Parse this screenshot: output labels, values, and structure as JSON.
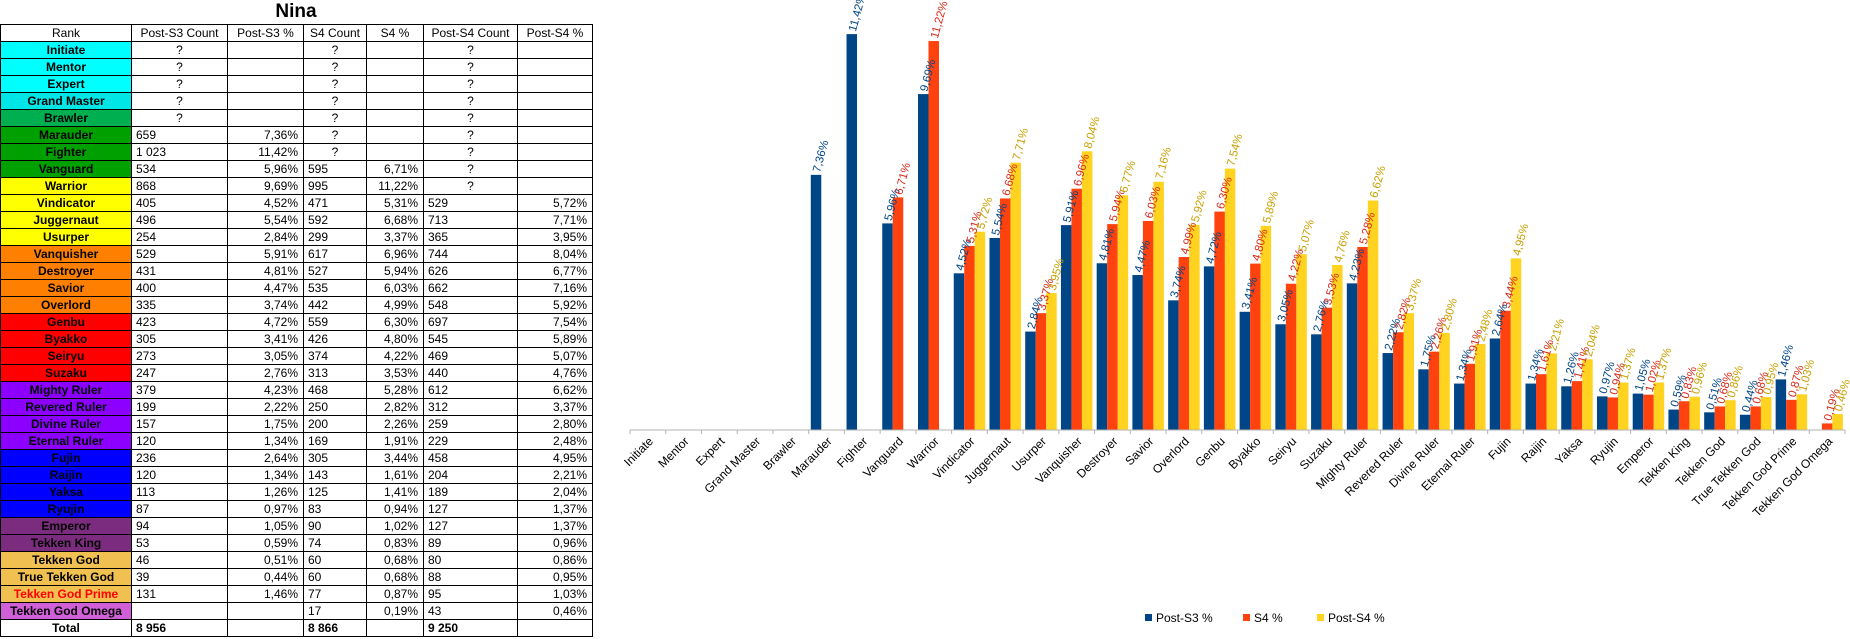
{
  "table": {
    "title": "Nina",
    "columns": [
      "Rank",
      "Post-S3 Count",
      "Post-S3 %",
      "S4 Count",
      "S4 %",
      "Post-S4 Count",
      "Post-S4 %"
    ],
    "rows": [
      {
        "rank": "Initiate",
        "color": "#00ffff",
        "post_s3_count": "?",
        "post_s3_pct": "",
        "s4_count": "?",
        "s4_pct": "",
        "post_s4_count": "?",
        "post_s4_pct": ""
      },
      {
        "rank": "Mentor",
        "color": "#00ffff",
        "post_s3_count": "?",
        "post_s3_pct": "",
        "s4_count": "?",
        "s4_pct": "",
        "post_s4_count": "?",
        "post_s4_pct": ""
      },
      {
        "rank": "Expert",
        "color": "#00ffff",
        "post_s3_count": "?",
        "post_s3_pct": "",
        "s4_count": "?",
        "s4_pct": "",
        "post_s4_count": "?",
        "post_s4_pct": ""
      },
      {
        "rank": "Grand Master",
        "color": "#00e5e5",
        "post_s3_count": "?",
        "post_s3_pct": "",
        "s4_count": "?",
        "s4_pct": "",
        "post_s4_count": "?",
        "post_s4_pct": ""
      },
      {
        "rank": "Brawler",
        "color": "#00b050",
        "post_s3_count": "?",
        "post_s3_pct": "",
        "s4_count": "?",
        "s4_pct": "",
        "post_s4_count": "?",
        "post_s4_pct": ""
      },
      {
        "rank": "Marauder",
        "color": "#00a000",
        "post_s3_count": "659",
        "post_s3_pct": "7,36%",
        "s4_count": "?",
        "s4_pct": "",
        "post_s4_count": "?",
        "post_s4_pct": ""
      },
      {
        "rank": "Fighter",
        "color": "#00a000",
        "post_s3_count": "1 023",
        "post_s3_pct": "11,42%",
        "s4_count": "?",
        "s4_pct": "",
        "post_s4_count": "?",
        "post_s4_pct": ""
      },
      {
        "rank": "Vanguard",
        "color": "#00a000",
        "post_s3_count": "534",
        "post_s3_pct": "5,96%",
        "s4_count": "595",
        "s4_pct": "6,71%",
        "post_s4_count": "?",
        "post_s4_pct": ""
      },
      {
        "rank": "Warrior",
        "color": "#ffff00",
        "post_s3_count": "868",
        "post_s3_pct": "9,69%",
        "s4_count": "995",
        "s4_pct": "11,22%",
        "post_s4_count": "?",
        "post_s4_pct": ""
      },
      {
        "rank": "Vindicator",
        "color": "#ffff00",
        "post_s3_count": "405",
        "post_s3_pct": "4,52%",
        "s4_count": "471",
        "s4_pct": "5,31%",
        "post_s4_count": "529",
        "post_s4_pct": "5,72%"
      },
      {
        "rank": "Juggernaut",
        "color": "#ffff00",
        "post_s3_count": "496",
        "post_s3_pct": "5,54%",
        "s4_count": "592",
        "s4_pct": "6,68%",
        "post_s4_count": "713",
        "post_s4_pct": "7,71%"
      },
      {
        "rank": "Usurper",
        "color": "#ffff00",
        "post_s3_count": "254",
        "post_s3_pct": "2,84%",
        "s4_count": "299",
        "s4_pct": "3,37%",
        "post_s4_count": "365",
        "post_s4_pct": "3,95%"
      },
      {
        "rank": "Vanquisher",
        "color": "#ff8000",
        "post_s3_count": "529",
        "post_s3_pct": "5,91%",
        "s4_count": "617",
        "s4_pct": "6,96%",
        "post_s4_count": "744",
        "post_s4_pct": "8,04%"
      },
      {
        "rank": "Destroyer",
        "color": "#ff8000",
        "post_s3_count": "431",
        "post_s3_pct": "4,81%",
        "s4_count": "527",
        "s4_pct": "5,94%",
        "post_s4_count": "626",
        "post_s4_pct": "6,77%"
      },
      {
        "rank": "Savior",
        "color": "#ff8000",
        "post_s3_count": "400",
        "post_s3_pct": "4,47%",
        "s4_count": "535",
        "s4_pct": "6,03%",
        "post_s4_count": "662",
        "post_s4_pct": "7,16%"
      },
      {
        "rank": "Overlord",
        "color": "#ff8000",
        "post_s3_count": "335",
        "post_s3_pct": "3,74%",
        "s4_count": "442",
        "s4_pct": "4,99%",
        "post_s4_count": "548",
        "post_s4_pct": "5,92%"
      },
      {
        "rank": "Genbu",
        "color": "#ff0000",
        "post_s3_count": "423",
        "post_s3_pct": "4,72%",
        "s4_count": "559",
        "s4_pct": "6,30%",
        "post_s4_count": "697",
        "post_s4_pct": "7,54%"
      },
      {
        "rank": "Byakko",
        "color": "#ff0000",
        "post_s3_count": "305",
        "post_s3_pct": "3,41%",
        "s4_count": "426",
        "s4_pct": "4,80%",
        "post_s4_count": "545",
        "post_s4_pct": "5,89%"
      },
      {
        "rank": "Seiryu",
        "color": "#ff0000",
        "post_s3_count": "273",
        "post_s3_pct": "3,05%",
        "s4_count": "374",
        "s4_pct": "4,22%",
        "post_s4_count": "469",
        "post_s4_pct": "5,07%"
      },
      {
        "rank": "Suzaku",
        "color": "#ff0000",
        "post_s3_count": "247",
        "post_s3_pct": "2,76%",
        "s4_count": "313",
        "s4_pct": "3,53%",
        "post_s4_count": "440",
        "post_s4_pct": "4,76%"
      },
      {
        "rank": "Mighty Ruler",
        "color": "#8b00ff",
        "post_s3_count": "379",
        "post_s3_pct": "4,23%",
        "s4_count": "468",
        "s4_pct": "5,28%",
        "post_s4_count": "612",
        "post_s4_pct": "6,62%"
      },
      {
        "rank": "Revered Ruler",
        "color": "#8b00ff",
        "post_s3_count": "199",
        "post_s3_pct": "2,22%",
        "s4_count": "250",
        "s4_pct": "2,82%",
        "post_s4_count": "312",
        "post_s4_pct": "3,37%"
      },
      {
        "rank": "Divine Ruler",
        "color": "#8b00ff",
        "post_s3_count": "157",
        "post_s3_pct": "1,75%",
        "s4_count": "200",
        "s4_pct": "2,26%",
        "post_s4_count": "259",
        "post_s4_pct": "2,80%"
      },
      {
        "rank": "Eternal Ruler",
        "color": "#8b00ff",
        "post_s3_count": "120",
        "post_s3_pct": "1,34%",
        "s4_count": "169",
        "s4_pct": "1,91%",
        "post_s4_count": "229",
        "post_s4_pct": "2,48%"
      },
      {
        "rank": "Fujin",
        "color": "#0000ff",
        "post_s3_count": "236",
        "post_s3_pct": "2,64%",
        "s4_count": "305",
        "s4_pct": "3,44%",
        "post_s4_count": "458",
        "post_s4_pct": "4,95%"
      },
      {
        "rank": "Raijin",
        "color": "#0000ff",
        "post_s3_count": "120",
        "post_s3_pct": "1,34%",
        "s4_count": "143",
        "s4_pct": "1,61%",
        "post_s4_count": "204",
        "post_s4_pct": "2,21%"
      },
      {
        "rank": "Yaksa",
        "color": "#0000ff",
        "post_s3_count": "113",
        "post_s3_pct": "1,26%",
        "s4_count": "125",
        "s4_pct": "1,41%",
        "post_s4_count": "189",
        "post_s4_pct": "2,04%"
      },
      {
        "rank": "Ryujin",
        "color": "#0000ff",
        "post_s3_count": "87",
        "post_s3_pct": "0,97%",
        "s4_count": "83",
        "s4_pct": "0,94%",
        "post_s4_count": "127",
        "post_s4_pct": "1,37%"
      },
      {
        "rank": "Emperor",
        "color": "#7b2c7e",
        "post_s3_count": "94",
        "post_s3_pct": "1,05%",
        "s4_count": "90",
        "s4_pct": "1,02%",
        "post_s4_count": "127",
        "post_s4_pct": "1,37%"
      },
      {
        "rank": "Tekken King",
        "color": "#7b2c7e",
        "post_s3_count": "53",
        "post_s3_pct": "0,59%",
        "s4_count": "74",
        "s4_pct": "0,83%",
        "post_s4_count": "89",
        "post_s4_pct": "0,96%"
      },
      {
        "rank": "Tekken God",
        "color": "#f0c050",
        "post_s3_count": "46",
        "post_s3_pct": "0,51%",
        "s4_count": "60",
        "s4_pct": "0,68%",
        "post_s4_count": "80",
        "post_s4_pct": "0,86%"
      },
      {
        "rank": "True Tekken God",
        "color": "#f0c050",
        "post_s3_count": "39",
        "post_s3_pct": "0,44%",
        "s4_count": "60",
        "s4_pct": "0,68%",
        "post_s4_count": "88",
        "post_s4_pct": "0,95%"
      },
      {
        "rank": "Tekken God Prime",
        "color": "#f0c050",
        "text_color": "#ff0000",
        "post_s3_count": "131",
        "post_s3_pct": "1,46%",
        "s4_count": "77",
        "s4_pct": "0,87%",
        "post_s4_count": "95",
        "post_s4_pct": "1,03%"
      },
      {
        "rank": "Tekken God Omega",
        "color": "#d15fd8",
        "post_s3_count": "",
        "post_s3_pct": "",
        "s4_count": "17",
        "s4_pct": "0,19%",
        "post_s4_count": "43",
        "post_s4_pct": "0,46%"
      }
    ],
    "total": {
      "rank": "Total",
      "post_s3_count": "8 956",
      "post_s3_pct": "",
      "s4_count": "8 866",
      "s4_pct": "",
      "post_s4_count": "9 250",
      "post_s4_pct": ""
    }
  },
  "chart_data": {
    "type": "bar",
    "categories": [
      "Initiate",
      "Mentor",
      "Expert",
      "Grand Master",
      "Brawler",
      "Marauder",
      "Fighter",
      "Vanguard",
      "Warrior",
      "Vindicator",
      "Juggernaut",
      "Usurper",
      "Vanquisher",
      "Destroyer",
      "Savior",
      "Overlord",
      "Genbu",
      "Byakko",
      "Seiryu",
      "Suzaku",
      "Mighty Ruler",
      "Revered Ruler",
      "Divine Ruler",
      "Eternal Ruler",
      "Fujin",
      "Raijin",
      "Yaksa",
      "Ryujin",
      "Emperor",
      "Tekken King",
      "Tekken God",
      "True Tekken God",
      "Tekken God Prime",
      "Tekken God Omega"
    ],
    "series": [
      {
        "name": "Post-S3 %",
        "color": "#004586",
        "label_color": "#004586",
        "values": [
          null,
          null,
          null,
          null,
          null,
          7.36,
          11.42,
          5.96,
          9.69,
          4.52,
          5.54,
          2.84,
          5.91,
          4.81,
          4.47,
          3.74,
          4.72,
          3.41,
          3.05,
          2.76,
          4.23,
          2.22,
          1.75,
          1.34,
          2.64,
          1.34,
          1.26,
          0.97,
          1.05,
          0.59,
          0.51,
          0.44,
          1.46,
          null
        ],
        "labels": [
          "",
          "",
          "",
          "",
          "",
          "7,36%",
          "11,42%",
          "5,96%",
          "9,69%",
          "4,52%",
          "5,54%",
          "2,84%",
          "5,91%",
          "4,81%",
          "4,47%",
          "3,74%",
          "4,72%",
          "3,41%",
          "3,05%",
          "2,76%",
          "4,23%",
          "2,22%",
          "1,75%",
          "1,34%",
          "2,64%",
          "1,34%",
          "1,26%",
          "0,97%",
          "1,05%",
          "0,59%",
          "0,51%",
          "0,44%",
          "1,46%",
          ""
        ]
      },
      {
        "name": "S4 %",
        "color": "#ff420e",
        "label_color": "#d9281a",
        "values": [
          null,
          null,
          null,
          null,
          null,
          null,
          null,
          6.71,
          11.22,
          5.31,
          6.68,
          3.37,
          6.96,
          5.94,
          6.03,
          4.99,
          6.3,
          4.8,
          4.22,
          3.53,
          5.28,
          2.82,
          2.26,
          1.91,
          3.44,
          1.61,
          1.41,
          0.94,
          1.02,
          0.83,
          0.68,
          0.68,
          0.87,
          0.19
        ],
        "labels": [
          "",
          "",
          "",
          "",
          "",
          "",
          "",
          "6,71%",
          "11,22%",
          "5,31%",
          "6,68%",
          "3,37%",
          "6,96%",
          "5,94%",
          "6,03%",
          "4,99%",
          "6,30%",
          "4,80%",
          "4,22%",
          "3,53%",
          "5,28%",
          "2,82%",
          "2,26%",
          "1,91%",
          "3,44%",
          "1,61%",
          "1,41%",
          "0,94%",
          "1,02%",
          "0,83%",
          "0,68%",
          "0,68%",
          "0,87%",
          "0,19%"
        ]
      },
      {
        "name": "Post-S4 %",
        "color": "#ffd320",
        "label_color": "#c8a000",
        "values": [
          null,
          null,
          null,
          null,
          null,
          null,
          null,
          null,
          null,
          5.72,
          7.71,
          3.95,
          8.04,
          6.77,
          7.16,
          5.92,
          7.54,
          5.89,
          5.07,
          4.76,
          6.62,
          3.37,
          2.8,
          2.48,
          4.95,
          2.21,
          2.04,
          1.37,
          1.37,
          0.96,
          0.86,
          0.95,
          1.03,
          0.46
        ],
        "labels": [
          "",
          "",
          "",
          "",
          "",
          "",
          "",
          "",
          "",
          "5,72%",
          "7,71%",
          "3,95%",
          "8,04%",
          "6,77%",
          "7,16%",
          "5,92%",
          "7,54%",
          "5,89%",
          "5,07%",
          "4,76%",
          "6,62%",
          "3,37%",
          "2,80%",
          "2,48%",
          "4,95%",
          "2,21%",
          "2,04%",
          "1,37%",
          "1,37%",
          "0,96%",
          "0,86%",
          "0,95%",
          "1,03%",
          "0,46%"
        ]
      }
    ],
    "ylim": [
      0,
      12
    ],
    "grid": false,
    "legend": "bottom-center"
  }
}
